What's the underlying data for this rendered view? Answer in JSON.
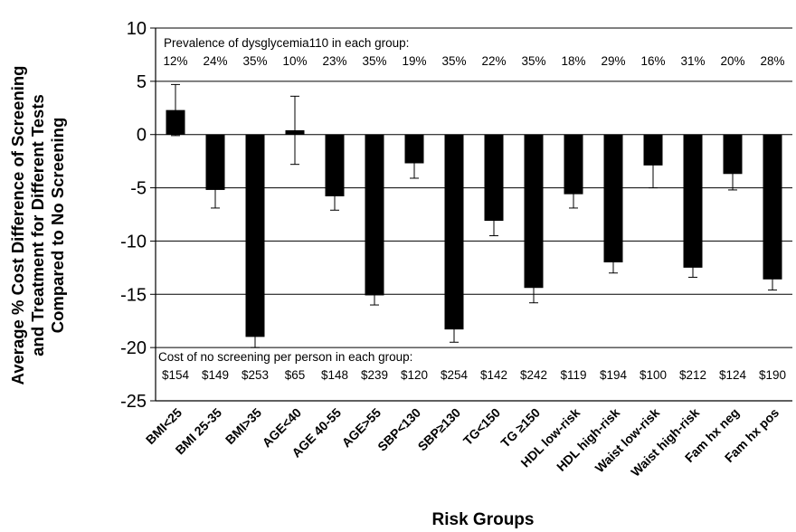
{
  "chart_data": {
    "type": "bar",
    "ylabel_lines": [
      "Average % Cost Difference of Screening",
      "and Treatment for Different Tests",
      "Compared to No Screening"
    ],
    "xlabel": "Risk Groups",
    "ylim": [
      -25,
      10
    ],
    "yticks": [
      10,
      5,
      0,
      -5,
      -10,
      -15,
      -20,
      -25
    ],
    "grid": true,
    "categories": [
      "BMI<25",
      "BMI 25-35",
      "BMI>35",
      "AGE<40",
      "AGE 40-55",
      "AGE>55",
      "SBP<130",
      "SBP≥130",
      "TG<150",
      "TG ≥150",
      "HDL low-risk",
      "HDL high-risk",
      "Waist low-risk",
      "Waist high-risk",
      "Fam hx neg",
      "Fam hx pos"
    ],
    "values": [
      2.3,
      -5.2,
      -19.0,
      0.4,
      -5.8,
      -15.1,
      -2.7,
      -18.3,
      -8.1,
      -14.4,
      -5.6,
      -12.0,
      -2.9,
      -12.5,
      -3.7,
      -13.6
    ],
    "errors": [
      2.4,
      1.7,
      1.0,
      3.2,
      1.3,
      0.9,
      1.4,
      1.2,
      1.4,
      1.4,
      1.3,
      1.0,
      2.1,
      0.9,
      1.5,
      1.0
    ],
    "bar_color": "#000000",
    "prevalence_title": "Prevalence of dysglycemia110 in each group:",
    "prevalence": [
      "12%",
      "24%",
      "35%",
      "10%",
      "23%",
      "35%",
      "19%",
      "35%",
      "22%",
      "35%",
      "18%",
      "29%",
      "16%",
      "31%",
      "20%",
      "28%"
    ],
    "cost_title": "Cost of no screening per person in each group:",
    "cost": [
      "$154",
      "$149",
      "$253",
      "$65",
      "$148",
      "$239",
      "$120",
      "$254",
      "$142",
      "$242",
      "$119",
      "$194",
      "$100",
      "$212",
      "$124",
      "$190"
    ]
  }
}
